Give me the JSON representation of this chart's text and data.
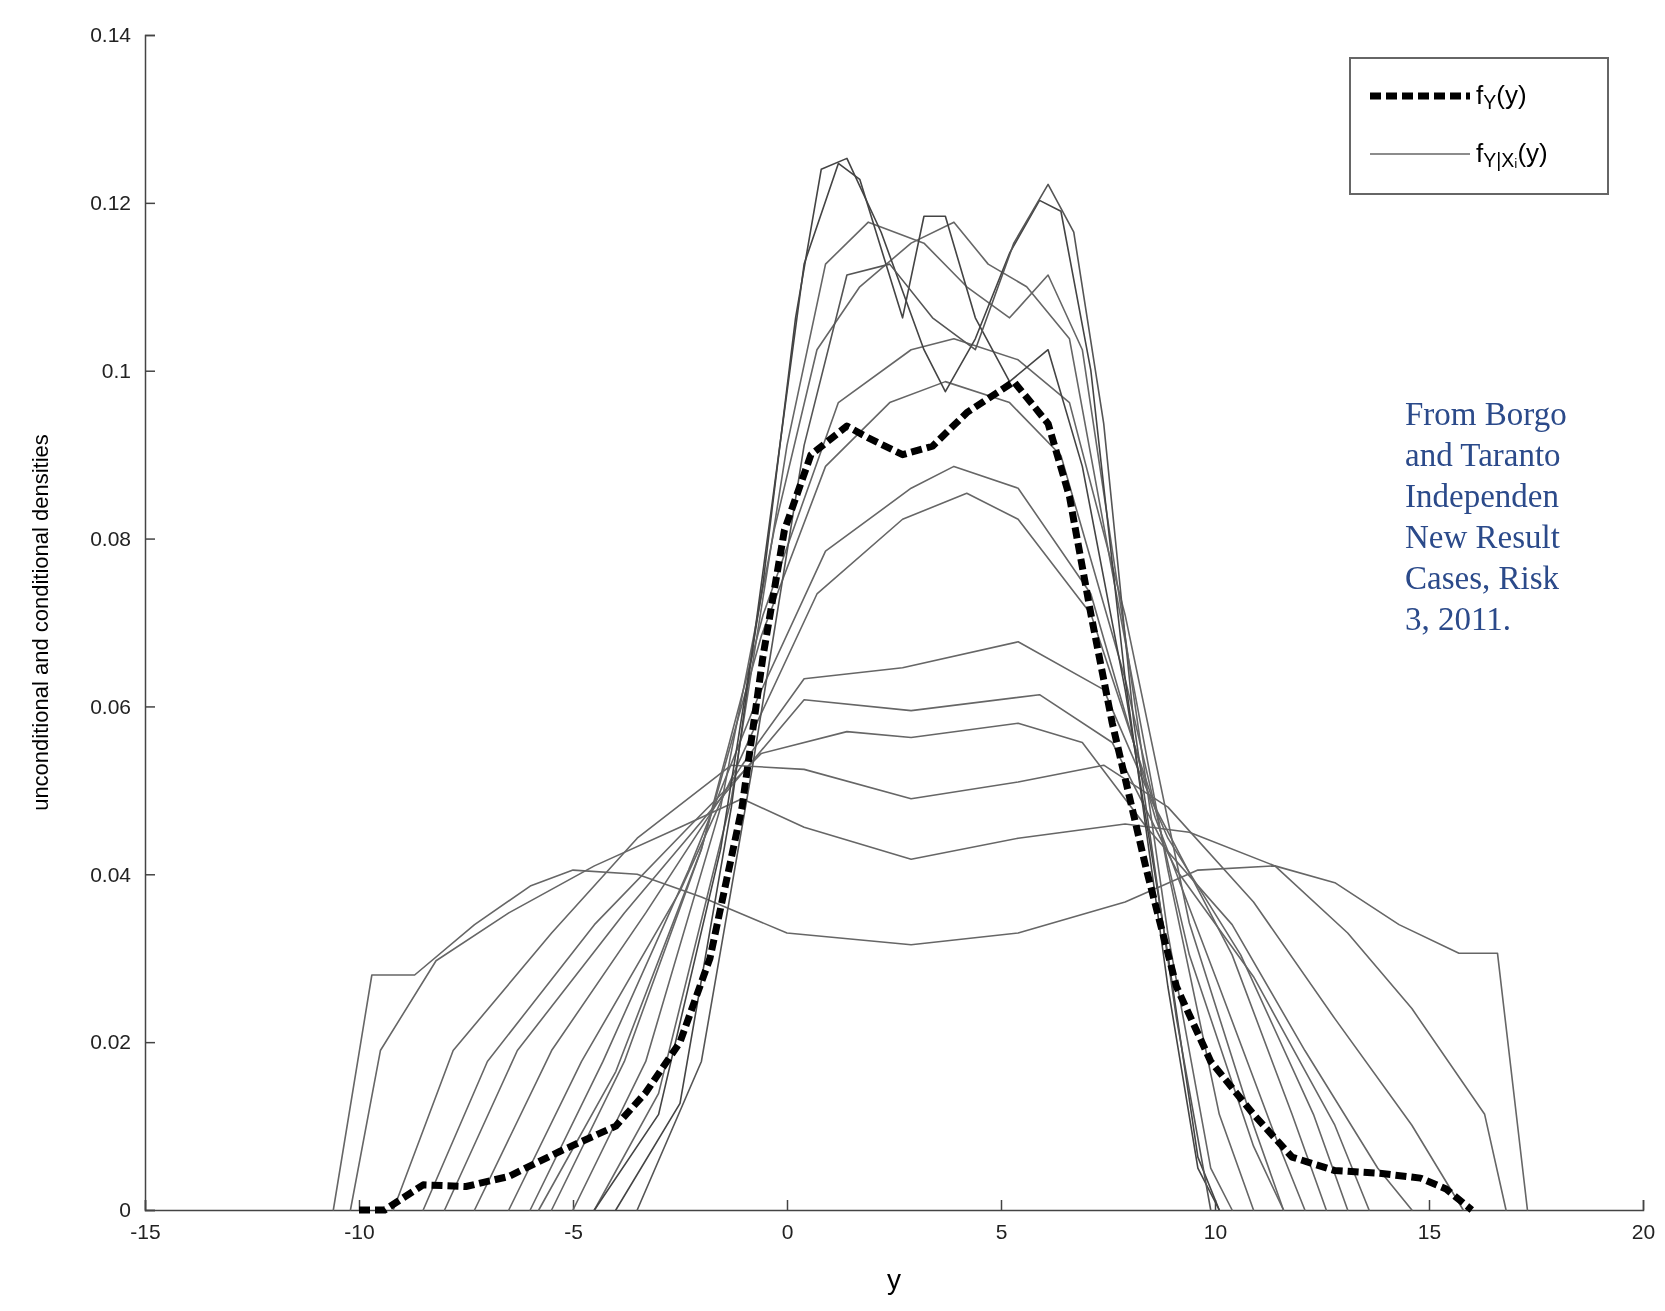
{
  "chart_data": {
    "type": "line",
    "xlabel": "y",
    "ylabel": "unconditional and conditional densities",
    "xlim": [
      -15,
      20
    ],
    "xticks": [
      -15,
      -10,
      -5,
      0,
      5,
      10,
      15,
      20
    ],
    "ylim": [
      0,
      0.14
    ],
    "yticks": [
      0,
      0.02,
      0.04,
      0.06,
      0.08,
      0.1,
      0.12,
      0.14
    ],
    "grid": false,
    "legend": "top right",
    "marker": "none",
    "line_style": "solid",
    "annotations": [
      "From Borgo\nand Taranto\nIndependen\nNew Result\nCases, Risk\n3, 2011."
    ],
    "series": [
      {
        "name": "f$_{Y}$(y)",
        "color": "#000000",
        "line_style": "dashed",
        "x": [
          -10,
          -9.4,
          -8.5,
          -7.5,
          -6.5,
          -5.3,
          -4.0,
          -3.3,
          -2.5,
          -1.8,
          -1.05,
          -0.56,
          -0.06,
          0.56,
          1.4,
          1.9,
          2.7,
          3.4,
          4.2,
          5.3,
          6.1,
          6.6,
          7.1,
          7.6,
          8.4,
          9.1,
          9.9,
          10.9,
          11.8,
          12.8,
          13.8,
          14.8,
          15.4,
          16.0
        ],
        "values": [
          0,
          0,
          0.003,
          0.0028,
          0.004,
          0.007,
          0.01,
          0.014,
          0.02,
          0.03,
          0.048,
          0.066,
          0.081,
          0.09,
          0.0934,
          0.092,
          0.09,
          0.091,
          0.095,
          0.0987,
          0.0937,
          0.085,
          0.071,
          0.058,
          0.0405,
          0.0266,
          0.0177,
          0.0114,
          0.0063,
          0.0047,
          0.0044,
          0.0038,
          0.0025,
          0
        ]
      },
      {
        "name": "f$_{Y|Xᵢ}$(y)",
        "color": "#666666",
        "x": [
          -10.6,
          -9.7,
          -8.7,
          -7.3,
          -6.0,
          -5.0,
          -3.5,
          -2.0,
          0,
          2.9,
          5.4,
          7.9,
          9.6,
          11.4,
          12.8,
          14.3,
          15.7,
          16.6,
          17.3
        ],
        "values": [
          0,
          0.028,
          0.028,
          0.034,
          0.0386,
          0.0405,
          0.04,
          0.0373,
          0.033,
          0.0316,
          0.033,
          0.0367,
          0.0405,
          0.041,
          0.039,
          0.034,
          0.0306,
          0.0306,
          0
        ]
      },
      {
        "color": "#666666",
        "x": [
          -10.2,
          -9.5,
          -8.2,
          -6.5,
          -4.5,
          -2.5,
          -1.05,
          0.4,
          2.9,
          5.4,
          7.9,
          9.4,
          11.4,
          13.1,
          14.6,
          16.3,
          16.8
        ],
        "values": [
          0,
          0.019,
          0.0297,
          0.0354,
          0.041,
          0.0456,
          0.049,
          0.0456,
          0.0418,
          0.0443,
          0.046,
          0.045,
          0.041,
          0.033,
          0.024,
          0.0114,
          0
        ]
      },
      {
        "color": "#666666",
        "x": [
          -9.2,
          -7.8,
          -5.5,
          -3.5,
          -1.3,
          0.4,
          2.9,
          5.4,
          7.4,
          8.9,
          10.9,
          12.8,
          14.6,
          15.8
        ],
        "values": [
          0,
          0.019,
          0.033,
          0.0443,
          0.053,
          0.0525,
          0.049,
          0.051,
          0.053,
          0.048,
          0.0367,
          0.0228,
          0.0101,
          0
        ]
      },
      {
        "color": "#666666",
        "x": [
          -8.5,
          -7.0,
          -4.5,
          -2.3,
          -0.6,
          1.4,
          2.9,
          5.4,
          6.9,
          8.4,
          10.4,
          12.1,
          13.8,
          14.6
        ],
        "values": [
          0,
          0.0177,
          0.034,
          0.0456,
          0.0544,
          0.057,
          0.0563,
          0.058,
          0.0557,
          0.0456,
          0.034,
          0.019,
          0.005,
          0
        ]
      },
      {
        "color": "#666666",
        "x": [
          -8.0,
          -6.3,
          -3.8,
          -1.55,
          0.4,
          2.9,
          5.9,
          7.6,
          9.1,
          10.9,
          12.8,
          13.6
        ],
        "values": [
          0,
          0.019,
          0.0354,
          0.049,
          0.0608,
          0.0595,
          0.0614,
          0.0557,
          0.0405,
          0.0278,
          0.0101,
          0
        ]
      },
      {
        "color": "#666666",
        "x": [
          -7.3,
          -5.5,
          -3.3,
          -1.05,
          0.4,
          2.7,
          5.4,
          7.4,
          8.9,
          10.6,
          12.3,
          13.1
        ],
        "values": [
          0,
          0.019,
          0.0354,
          0.053,
          0.0633,
          0.0646,
          0.0677,
          0.062,
          0.0443,
          0.0304,
          0.0114,
          0
        ]
      },
      {
        "color": "#666666",
        "x": [
          -6.5,
          -4.8,
          -2.5,
          -0.8,
          0.7,
          2.7,
          4.2,
          5.4,
          7.1,
          8.6,
          10.4,
          11.8,
          12.6
        ],
        "values": [
          0,
          0.0177,
          0.038,
          0.057,
          0.0734,
          0.0823,
          0.0854,
          0.0823,
          0.071,
          0.048,
          0.0304,
          0.0114,
          0
        ]
      },
      {
        "color": "#666666",
        "x": [
          -6.0,
          -4.3,
          -2.3,
          -0.7,
          0.9,
          2.9,
          3.9,
          5.4,
          7.1,
          8.6,
          10.1,
          11.4,
          12.1
        ],
        "values": [
          0,
          0.0177,
          0.0405,
          0.0608,
          0.0785,
          0.086,
          0.0886,
          0.086,
          0.0734,
          0.0468,
          0.0266,
          0.0089,
          0
        ]
      },
      {
        "color": "#666666",
        "x": [
          -5.8,
          -4.0,
          -2.0,
          -0.56,
          1.2,
          2.9,
          3.9,
          5.4,
          6.6,
          7.9,
          9.4,
          10.9,
          11.6
        ],
        "values": [
          0,
          0.0165,
          0.043,
          0.0709,
          0.0962,
          0.1025,
          0.1038,
          0.1013,
          0.0962,
          0.0709,
          0.0342,
          0.0101,
          0
        ]
      },
      {
        "color": "#666666",
        "x": [
          -5.5,
          -3.8,
          -2.0,
          -0.6,
          0.9,
          2.4,
          3.7,
          5.2,
          6.4,
          7.9,
          9.4,
          10.9,
          11.6
        ],
        "values": [
          0,
          0.0177,
          0.043,
          0.0684,
          0.0886,
          0.0962,
          0.0987,
          0.0962,
          0.0899,
          0.0633,
          0.0304,
          0.0076,
          0
        ]
      },
      {
        "color": "#666666",
        "x": [
          -5.0,
          -3.3,
          -1.55,
          -0.3,
          0.7,
          1.7,
          2.9,
          3.9,
          4.7,
          5.6,
          6.6,
          7.6,
          8.9,
          10.1,
          10.9
        ],
        "values": [
          0,
          0.0177,
          0.048,
          0.081,
          0.1025,
          0.11,
          0.1152,
          0.1177,
          0.1127,
          0.11,
          0.1038,
          0.076,
          0.0405,
          0.0114,
          0
        ]
      },
      {
        "color": "#666666",
        "x": [
          -4.5,
          -3.0,
          -1.3,
          0,
          0.9,
          1.9,
          3.2,
          4.2,
          5.2,
          6.1,
          6.9,
          7.9,
          8.9,
          9.9,
          10.4
        ],
        "values": [
          0,
          0.0139,
          0.049,
          0.0911,
          0.1127,
          0.1177,
          0.1152,
          0.11,
          0.1063,
          0.1114,
          0.1025,
          0.0684,
          0.0329,
          0.005,
          0
        ]
      },
      {
        "color": "#444444",
        "x": [
          -4.5,
          -3.0,
          -1.55,
          -0.56,
          0.2,
          0.8,
          1.4,
          2.2,
          3.2,
          3.7,
          4.4,
          5.2,
          5.9,
          6.4,
          7.1,
          7.9,
          8.9,
          9.6,
          10.1
        ],
        "values": [
          0,
          0.0114,
          0.043,
          0.0747,
          0.1063,
          0.124,
          0.1253,
          0.1165,
          0.1025,
          0.0975,
          0.1038,
          0.114,
          0.1203,
          0.119,
          0.1,
          0.0633,
          0.0266,
          0.005,
          0
        ]
      },
      {
        "color": "#444444",
        "x": [
          -4.0,
          -2.5,
          -1.3,
          -0.3,
          0.4,
          1.2,
          1.7,
          2.7,
          3.2,
          3.7,
          4.4,
          5.2,
          6.1,
          6.9,
          7.9,
          8.9,
          9.6,
          10.1
        ],
        "values": [
          0,
          0.0127,
          0.048,
          0.086,
          0.1127,
          0.1247,
          0.1228,
          0.1063,
          0.1184,
          0.1184,
          0.1063,
          0.0987,
          0.1025,
          0.0886,
          0.062,
          0.0304,
          0.0063,
          0
        ]
      },
      {
        "color": "#555555",
        "x": [
          -3.5,
          -2.0,
          -0.8,
          0.4,
          1.4,
          2.4,
          3.4,
          4.4,
          5.3,
          6.1,
          6.7,
          7.4,
          8.1,
          9.1,
          9.9
        ],
        "values": [
          0,
          0.0177,
          0.053,
          0.0911,
          0.1114,
          0.1127,
          0.1063,
          0.1025,
          0.1152,
          0.1222,
          0.1165,
          0.0937,
          0.0582,
          0.0228,
          0
        ]
      }
    ]
  }
}
